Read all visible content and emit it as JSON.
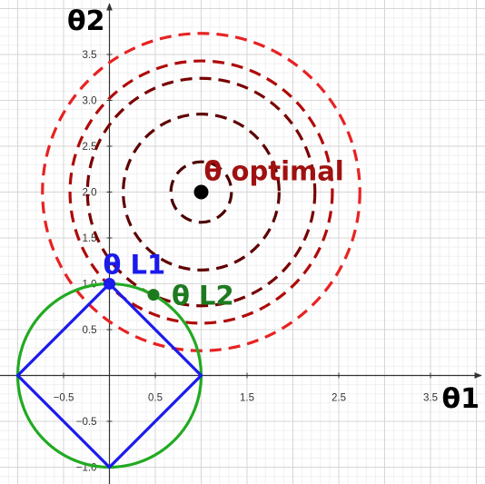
{
  "chart_data": {
    "type": "diagram",
    "xlabel": "θ1",
    "ylabel": "θ2",
    "x_ticks": [
      -0.5,
      0.5,
      1.5,
      2.5,
      3.5
    ],
    "x_tick_labels": [
      "−0.5",
      "0.5",
      "1.5",
      "2.5",
      "3.5"
    ],
    "y_ticks": [
      -1.0,
      -0.5,
      0.5,
      1.0,
      1.5,
      2.0,
      2.5,
      3.0,
      3.5
    ],
    "y_tick_labels": [
      "−1.0",
      "−0.5",
      "0.5",
      "1.0",
      "1.5",
      "2.0",
      "2.5",
      "3.0",
      "3.5"
    ],
    "xlim": [
      -1.2,
      4.1
    ],
    "ylim": [
      -1.2,
      4.0
    ],
    "grid": true,
    "contours": {
      "center": [
        1,
        2
      ],
      "radii": [
        0.33,
        0.85,
        1.24,
        1.43,
        1.73
      ],
      "colors": [
        "#4d0000",
        "#5e0000",
        "#780000",
        "#b00a0a",
        "#e82222"
      ],
      "style": "dashed"
    },
    "l1_ball": {
      "radius": 1,
      "color": "#1a1aee"
    },
    "l2_ball": {
      "radius": 1,
      "color": "#22aa22"
    },
    "points": [
      {
        "id": "optimal",
        "x": 1,
        "y": 2,
        "label": "θ optimal",
        "color": "#000000",
        "label_color": "#a01010"
      },
      {
        "id": "l1",
        "x": 0,
        "y": 1,
        "label": "θ L1",
        "color": "#1a1aee",
        "label_color": "#1a1aee"
      },
      {
        "id": "l2",
        "x": 0.48,
        "y": 0.88,
        "label": "θ L2",
        "color": "#1e7a1e",
        "label_color": "#1e7a1e"
      }
    ]
  }
}
